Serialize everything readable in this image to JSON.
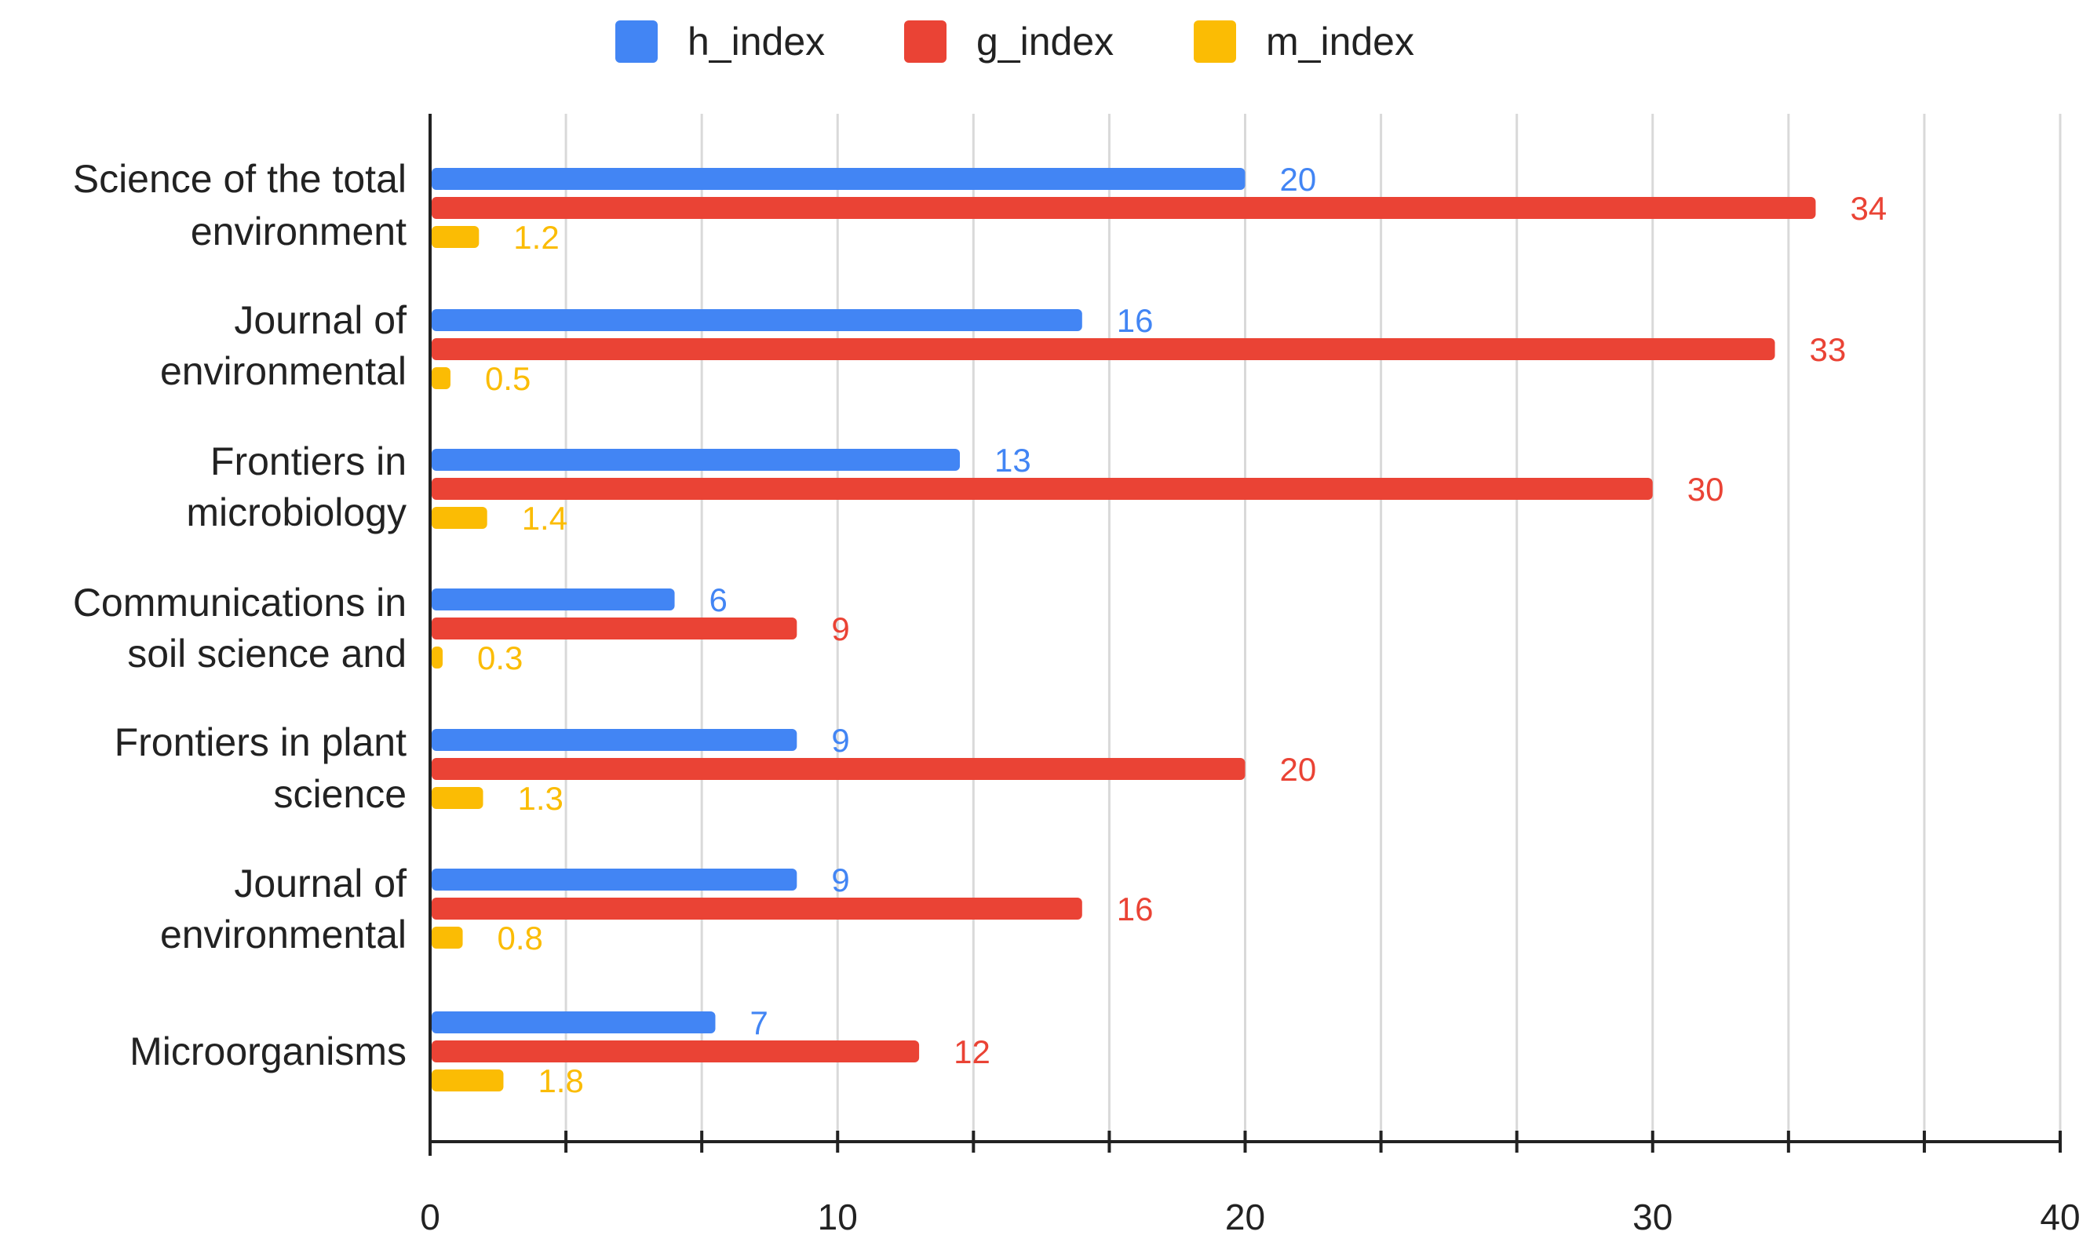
{
  "chart_data": {
    "type": "bar",
    "orientation": "horizontal",
    "title": "",
    "xlabel": "",
    "ylabel": "",
    "categories": [
      [
        "Science of the total",
        "environment"
      ],
      [
        "Journal of",
        "environmental"
      ],
      [
        "Frontiers in",
        "microbiology"
      ],
      [
        "Communications in",
        "soil science and"
      ],
      [
        "Frontiers in plant",
        "science"
      ],
      [
        "Journal of",
        "environmental"
      ],
      [
        "Microorganisms"
      ]
    ],
    "series": [
      {
        "name": "h_index",
        "color": "#4285F4",
        "values": [
          20,
          16,
          13,
          6,
          9,
          9,
          7
        ],
        "labels": [
          "20",
          "16",
          "13",
          "6",
          "9",
          "9",
          "7"
        ]
      },
      {
        "name": "g_index",
        "color": "#EA4335",
        "values": [
          34,
          33,
          30,
          9,
          20,
          16,
          12
        ],
        "labels": [
          "34",
          "33",
          "30",
          "9",
          "20",
          "16",
          "12"
        ]
      },
      {
        "name": "m_index",
        "color": "#FBBC04",
        "values": [
          1.2,
          0.5,
          1.4,
          0.3,
          1.3,
          0.8,
          1.8
        ],
        "labels": [
          "1.2",
          "0.5",
          "1.4",
          "0.3",
          "1.3",
          "0.8",
          "1.8"
        ]
      }
    ],
    "xlim": [
      0,
      40
    ],
    "x_ticks": [
      0,
      10,
      20,
      30,
      40
    ],
    "x_tick_labels": [
      "0",
      "10",
      "20",
      "30",
      "40"
    ],
    "grid": true,
    "legend_position": "top"
  }
}
